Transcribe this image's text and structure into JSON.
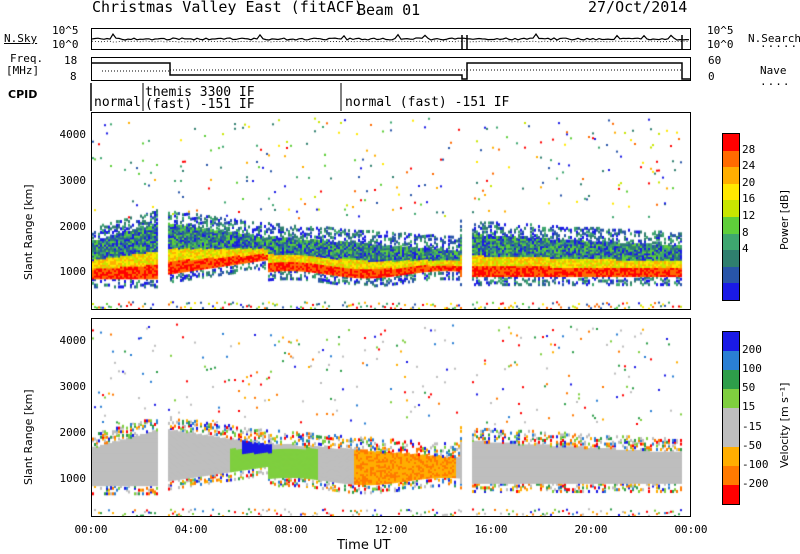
{
  "header": {
    "radar": "Christmas Valley East (fitACF)",
    "beam": "Beam 01",
    "date": "27/Oct/2014"
  },
  "noise_panel": {
    "left_label": "N.Sky",
    "left_ticks": [
      "10^5",
      "10^0"
    ],
    "right_ticks": [
      "10^5",
      "10^0"
    ],
    "right_label": "N.Search"
  },
  "freq_panel": {
    "left_label_1": "Freq.",
    "left_label_2": "[MHz]",
    "left_ticks": [
      "18",
      "8"
    ],
    "right_ticks": [
      "60",
      "0"
    ],
    "right_label": "Nave"
  },
  "cpid": {
    "label": "CPID",
    "segments": [
      "normal",
      "themis 3300 IF",
      "(fast) -151 IF",
      "normal (fast) -151 IF"
    ]
  },
  "chart_data": [
    {
      "type": "heatmap",
      "quantity": "Power",
      "ylabel": "Slant Range [km]",
      "yticks": [
        "4000",
        "3000",
        "2000",
        "1000"
      ],
      "ylim": [
        180,
        4500
      ],
      "xlim": [
        0,
        24
      ],
      "colorbar": {
        "label": "Power [dB]",
        "ticks": [
          "28",
          "24",
          "20",
          "16",
          "12",
          "8",
          "4"
        ],
        "colors": [
          "#ff0000",
          "#ff6a00",
          "#ffae00",
          "#ffe800",
          "#c8e600",
          "#5fcf3a",
          "#3ea66f",
          "#2f7f6e",
          "#2855a8",
          "#1a1ae6"
        ]
      }
    },
    {
      "type": "heatmap",
      "quantity": "Velocity",
      "ylabel": "Slant Range [km]",
      "yticks": [
        "4000",
        "3000",
        "2000",
        "1000"
      ],
      "ylim": [
        180,
        4500
      ],
      "xlim": [
        0,
        24
      ],
      "colorbar": {
        "label": "Velocity [m s⁻¹]",
        "ticks": [
          "200",
          "100",
          "50",
          "15",
          "-15",
          "-50",
          "-100",
          "-200"
        ],
        "colors": [
          "#1a1ae6",
          "#2a7fd4",
          "#2e9e4a",
          "#7fcf3f",
          "#bebebe",
          "#bebebe",
          "#ffae00",
          "#ff7a00",
          "#ff0000"
        ]
      }
    }
  ],
  "x_axis": {
    "ticks": [
      "00:00",
      "04:00",
      "08:00",
      "12:00",
      "16:00",
      "20:00",
      "00:00"
    ],
    "label": "Time UT"
  }
}
